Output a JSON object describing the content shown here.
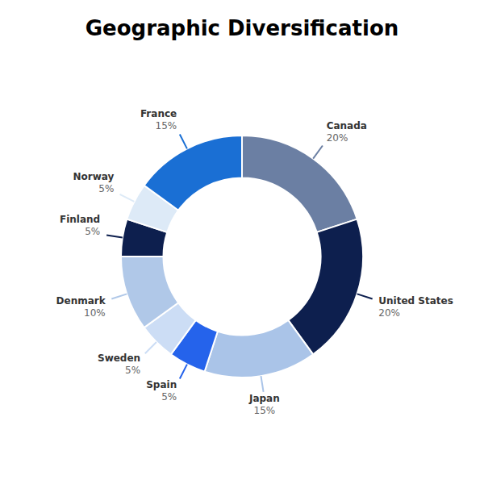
{
  "chart_data": {
    "type": "donut",
    "title": "Geographic Diversification",
    "categories": [
      "Canada",
      "United States",
      "Japan",
      "Spain",
      "Sweden",
      "Denmark",
      "Finland",
      "Norway",
      "France"
    ],
    "values": [
      20,
      20,
      15,
      5,
      5,
      10,
      5,
      5,
      15
    ],
    "value_labels": [
      "20%",
      "20%",
      "15%",
      "5%",
      "5%",
      "10%",
      "5%",
      "5%",
      "15%"
    ],
    "colors": [
      "#6b7fa3",
      "#0d1f4e",
      "#aac4e8",
      "#2563eb",
      "#ccddf5",
      "#b0c8e8",
      "#0d1f4e",
      "#ddeaf7",
      "#1a6fd4"
    ],
    "data_labels": true
  }
}
